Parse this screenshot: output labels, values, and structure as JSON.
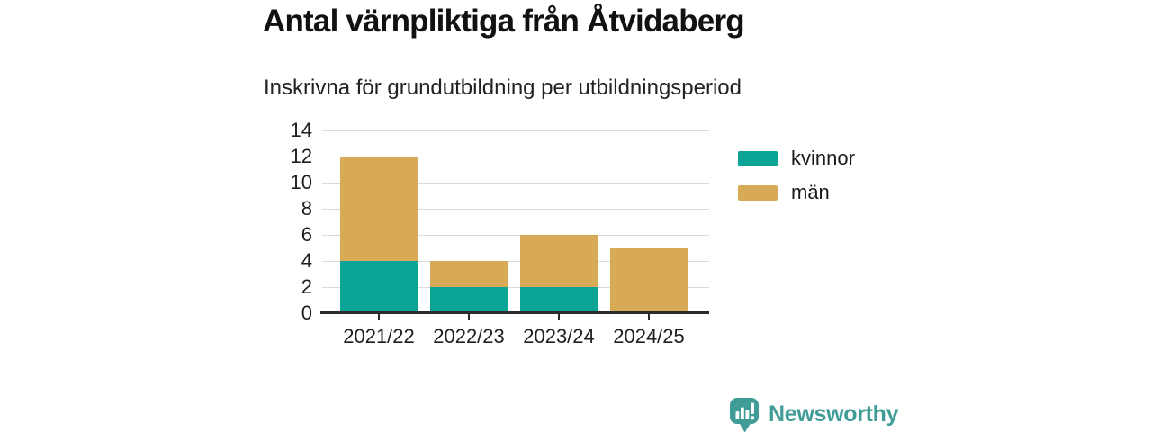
{
  "title": "Antal värnpliktiga från Åtvidaberg",
  "subtitle": "Inskrivna för grundutbildning per utbildningsperiod",
  "chart_data": {
    "type": "bar",
    "stacked": true,
    "title": "Antal värnpliktiga från Åtvidaberg",
    "subtitle": "Inskrivna för grundutbildning per utbildningsperiod",
    "categories": [
      "2021/22",
      "2022/23",
      "2023/24",
      "2024/25"
    ],
    "series": [
      {
        "name": "kvinnor",
        "color": "#0aa396",
        "values": [
          4,
          2,
          2,
          0
        ]
      },
      {
        "name": "män",
        "color": "#d9aa55",
        "values": [
          8,
          2,
          4,
          5
        ]
      }
    ],
    "totals": [
      12,
      4,
      6,
      5
    ],
    "ylim": [
      0,
      14
    ],
    "yticks": [
      0,
      2,
      4,
      6,
      8,
      10,
      12,
      14
    ],
    "grid": true,
    "legend_position": "right"
  },
  "colors": {
    "kvinnor": "#0aa396",
    "man": "#d9aa55",
    "axis": "#2b2b2b",
    "gridline": "#dadada",
    "brand_teal": "#3f9c96"
  },
  "branding": {
    "logo_text": "Newsworthy",
    "logo_icon": "bar-chart-speech-bubble-icon"
  }
}
